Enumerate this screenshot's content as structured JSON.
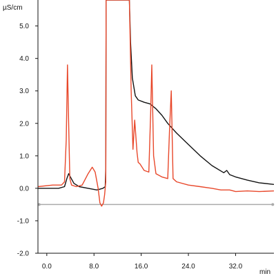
{
  "chart_data": {
    "type": "line",
    "ylabel": "µS/cm",
    "xlabel": "min",
    "xlim": [
      -1.5,
      38.5
    ],
    "ylim": [
      -2.0,
      5.8
    ],
    "x_ticks": [
      0.0,
      8.0,
      16.0,
      24.0,
      32.0
    ],
    "x_tick_labels": [
      "0.0",
      "8.0",
      "16.0",
      "24.0",
      "32.0"
    ],
    "y_ticks": [
      -2.0,
      -1.0,
      0.0,
      1.0,
      2.0,
      3.0,
      4.0,
      5.0
    ],
    "y_tick_labels": [
      "-2.0",
      "-1.0",
      "0.0",
      "1.0",
      "2.0",
      "3.0",
      "4.0",
      "5.0"
    ],
    "grid": false,
    "baseline_marker": {
      "y": -0.5,
      "x_start": -1.3,
      "x_end": 38.3
    },
    "colors": {
      "black_trace": "#111111",
      "red_trace": "#e8472a",
      "baseline": "#aaaaaa",
      "axis": "#111111"
    },
    "series": [
      {
        "color": "#111111",
        "x": [
          -1.5,
          2.0,
          3.0,
          3.4,
          3.7,
          4.0,
          4.6,
          5.5,
          7.0,
          8.5,
          9.5,
          9.9,
          10.0,
          10.05,
          10.2,
          10.3,
          14.0,
          14.2,
          14.5,
          15.0,
          15.5,
          16.5,
          17.5,
          18.5,
          19.5,
          20.5,
          22.0,
          24.0,
          26.0,
          28.0,
          30.0,
          30.5,
          31.0,
          32.0,
          34.0,
          36.0,
          38.5
        ],
        "y": [
          0.0,
          0.0,
          0.05,
          0.3,
          0.45,
          0.35,
          0.15,
          0.05,
          0.0,
          -0.05,
          0.0,
          0.05,
          0.6,
          5.8,
          5.8,
          5.8,
          5.8,
          4.5,
          3.4,
          2.85,
          2.72,
          2.65,
          2.6,
          2.45,
          2.25,
          2.0,
          1.7,
          1.35,
          1.0,
          0.7,
          0.48,
          0.55,
          0.42,
          0.35,
          0.25,
          0.17,
          0.12
        ]
      },
      {
        "color": "#e8472a",
        "x": [
          -1.5,
          1.0,
          2.5,
          3.0,
          3.3,
          3.5,
          3.7,
          3.9,
          4.2,
          5.0,
          6.0,
          7.0,
          7.7,
          8.2,
          8.7,
          9.0,
          9.3,
          9.6,
          9.8,
          10.0,
          10.05,
          10.2,
          10.3,
          14.0,
          14.3,
          14.6,
          14.9,
          15.3,
          15.5,
          15.8,
          16.5,
          17.3,
          17.6,
          17.8,
          18.1,
          18.5,
          19.5,
          20.5,
          20.8,
          21.1,
          21.4,
          22.0,
          24.0,
          26.0,
          28.0,
          29.5,
          30.0,
          31.0,
          32.0,
          34.0,
          36.0,
          38.5
        ],
        "y": [
          0.05,
          0.1,
          0.1,
          0.2,
          1.5,
          3.8,
          2.0,
          0.3,
          0.1,
          0.05,
          0.1,
          0.45,
          0.65,
          0.5,
          0.0,
          -0.45,
          -0.55,
          -0.45,
          -0.2,
          0.2,
          5.8,
          5.8,
          5.8,
          5.8,
          3.0,
          1.2,
          2.1,
          1.1,
          0.8,
          0.75,
          0.55,
          0.5,
          2.3,
          3.8,
          1.0,
          0.45,
          0.35,
          0.3,
          1.8,
          3.0,
          0.3,
          0.2,
          0.1,
          0.05,
          0.0,
          -0.05,
          -0.05,
          -0.05,
          -0.1,
          -0.08,
          -0.1,
          -0.08
        ]
      }
    ]
  }
}
